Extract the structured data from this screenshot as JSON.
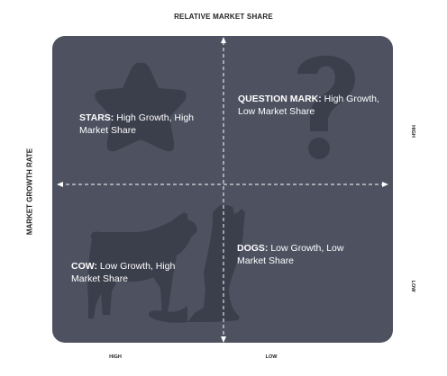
{
  "axes": {
    "top_label": "RELATIVE MARKET SHARE",
    "left_label": "MARKET GROWTH RATE",
    "right_high": "HIGH",
    "right_low": "LOW",
    "bottom_high": "HIGH",
    "bottom_low": "LOW"
  },
  "quadrants": {
    "stars": {
      "title": "STARS:",
      "desc": "High Growth,  High Market Share"
    },
    "question": {
      "title": "QUESTION MARK:",
      "desc": "High Growth,  Low Market Share"
    },
    "cow": {
      "title": "COW:",
      "desc": "Low Growth,  High Market Share"
    },
    "dogs": {
      "title": "DOGS:",
      "desc": "Low Growth,  Low Market Share"
    }
  },
  "colors": {
    "board": "#4d5160",
    "silhouette": "#3b3e4b",
    "text": "#ffffff"
  },
  "icons": [
    "star-icon",
    "question-mark-icon",
    "cow-icon",
    "dog-icon"
  ]
}
